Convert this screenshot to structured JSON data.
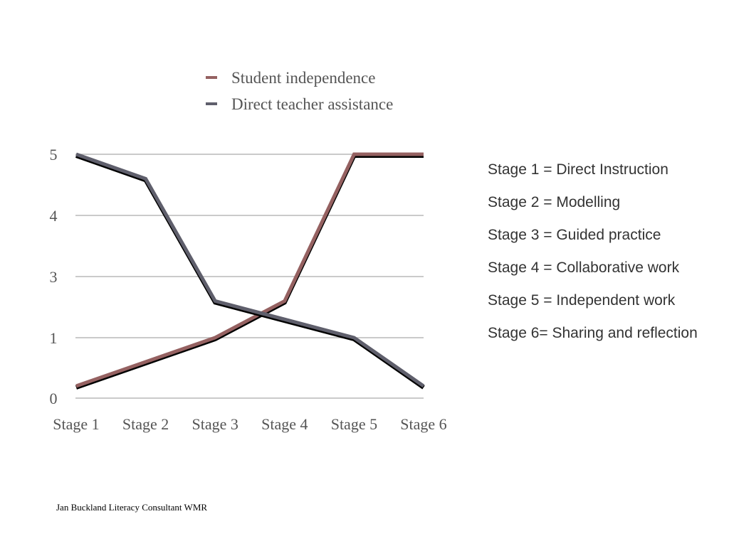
{
  "chart_data": {
    "type": "line",
    "categories": [
      "Stage 1",
      "Stage 2",
      "Stage 3",
      "Stage 4",
      "Stage 5",
      "Stage 6"
    ],
    "y_ticks": [
      0,
      1,
      3,
      4,
      5
    ],
    "ylim": [
      0,
      5
    ],
    "grid": true,
    "legend_position": "top",
    "series": [
      {
        "name": "Student independence",
        "color": "#956161",
        "values": [
          0.2,
          0.6,
          1.0,
          2.2,
          5,
          5
        ]
      },
      {
        "name": "Direct teacher assistance",
        "color": "#5f5f6c",
        "values": [
          5,
          4.6,
          2.2,
          1.6,
          1.0,
          0.2
        ]
      }
    ]
  },
  "stage_definitions": [
    "Stage 1 = Direct Instruction",
    "Stage 2 = Modelling",
    "Stage 3 = Guided practice",
    "Stage 4 = Collaborative work",
    "Stage 5 = Independent work",
    "Stage 6= Sharing and reflection"
  ],
  "footer": "Jan Buckland Literacy Consultant WMR"
}
